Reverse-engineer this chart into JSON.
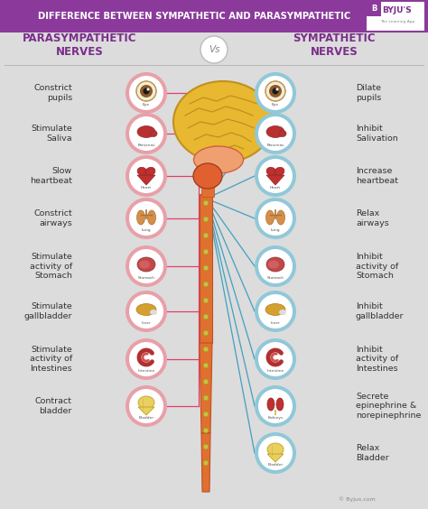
{
  "title": "DIFFERENCE BETWEEN SYMPATHETIC AND PARASYMPATHETIC",
  "title_bg": "#8B3A9B",
  "title_color": "#FFFFFF",
  "bg_color": "#DCDCDC",
  "left_header": "PARASYMPATHETIC\nNERVES",
  "right_header": "SYMPATHETIC\nNERVES",
  "vs_text": "Vs",
  "header_color": "#7B2D8B",
  "left_items": [
    {
      "label": "Constrict\npupils",
      "organ": "Eye",
      "ring": "#E8A0A8"
    },
    {
      "label": "Stimulate\nSaliva",
      "organ": "Pancreas",
      "ring": "#E8A0A8"
    },
    {
      "label": "Slow\nheartbeat",
      "organ": "Heart",
      "ring": "#E8A0A8"
    },
    {
      "label": "Constrict\nairways",
      "organ": "Lung",
      "ring": "#E8A0A8"
    },
    {
      "label": "Stimulate\nactivity of\nStomach",
      "organ": "Stomach",
      "ring": "#E8A0A8"
    },
    {
      "label": "Stimulate\ngallbladder",
      "organ": "Liver",
      "ring": "#E8A0A8"
    },
    {
      "label": "Stimulate\nactivity of\nIntestines",
      "organ": "Intestine",
      "ring": "#E8A0A8"
    },
    {
      "label": "Contract\nbladder",
      "organ": "Bladder",
      "ring": "#E8A0A8"
    }
  ],
  "right_items": [
    {
      "label": "Dilate\npupils",
      "organ": "Eye",
      "ring": "#90C8D8"
    },
    {
      "label": "Inhibit\nSalivation",
      "organ": "Pancreas",
      "ring": "#90C8D8"
    },
    {
      "label": "Increase\nheartbeat",
      "organ": "Heart",
      "ring": "#90C8D8"
    },
    {
      "label": "Relax\nairways",
      "organ": "Lung",
      "ring": "#90C8D8"
    },
    {
      "label": "Inhibit\nactivity of\nStomach",
      "organ": "Stomach",
      "ring": "#90C8D8"
    },
    {
      "label": "Inhibit\ngallbladder",
      "organ": "Liver",
      "ring": "#90C8D8"
    },
    {
      "label": "Inhibit\nactivity of\nIntestines",
      "organ": "Intestine",
      "ring": "#90C8D8"
    },
    {
      "label": "Secrete\nepinephrine &\nnorepinephrine",
      "organ": "Kidneys",
      "ring": "#90C8D8"
    },
    {
      "label": "Relax\nBladder",
      "organ": "Bladder",
      "ring": "#90C8D8"
    }
  ],
  "spine_color": "#E07030",
  "spine_dark": "#C05020",
  "left_line_color": "#E0406A",
  "right_line_color": "#40A0C0",
  "byju_color": "#7B2D8B",
  "brain_yellow": "#E8B830",
  "brain_dark": "#C09020",
  "brainstem_color": "#E06030",
  "cerebellum_color": "#F0A070",
  "dot_color": "#C8C040"
}
